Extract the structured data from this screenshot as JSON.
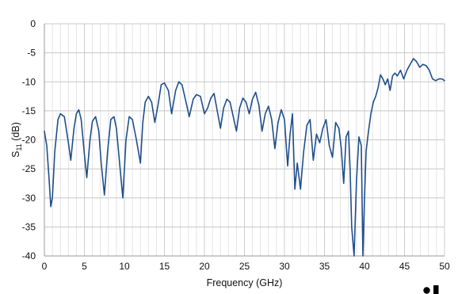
{
  "chart_data": {
    "type": "line",
    "title": "",
    "xlabel": "Frequency (GHz)",
    "ylabel": {
      "base": "S",
      "sub": "11",
      "rest": " (dB)"
    },
    "xlim": [
      0,
      50
    ],
    "ylim": [
      -40,
      0
    ],
    "x_ticks": [
      0,
      5,
      10,
      15,
      20,
      25,
      30,
      35,
      40,
      45,
      50
    ],
    "y_ticks": [
      0,
      -5,
      -10,
      -15,
      -20,
      -25,
      -30,
      -35,
      -40
    ],
    "x_minor_step": 1,
    "grid": true,
    "colors": {
      "series": "#1f4e8c",
      "grid": "#d9d9d9",
      "axis": "#9a9a9a"
    },
    "series": [
      {
        "x": [
          0,
          0.3,
          0.6,
          0.8,
          1.0,
          1.3,
          1.7,
          2.0,
          2.5,
          3.0,
          3.3,
          3.7,
          4.0,
          4.3,
          4.6,
          5.0,
          5.3,
          5.7,
          6.0,
          6.4,
          6.8,
          7.1,
          7.5,
          7.9,
          8.3,
          8.7,
          9.0,
          9.4,
          9.8,
          10.2,
          10.6,
          11.0,
          11.5,
          12.0,
          12.3,
          12.6,
          13.0,
          13.4,
          13.8,
          14.2,
          14.6,
          15.0,
          15.5,
          15.9,
          16.4,
          16.8,
          17.2,
          17.7,
          18.1,
          18.6,
          19.0,
          19.5,
          20.0,
          20.4,
          20.8,
          21.2,
          21.6,
          22.0,
          22.4,
          22.8,
          23.2,
          23.6,
          24.0,
          24.4,
          24.8,
          25.2,
          25.6,
          26.0,
          26.4,
          26.8,
          27.2,
          27.6,
          28.0,
          28.4,
          28.8,
          29.2,
          29.6,
          30.0,
          30.4,
          30.7,
          31.0,
          31.3,
          31.6,
          32.0,
          32.4,
          32.8,
          33.2,
          33.6,
          34.0,
          34.4,
          34.8,
          35.2,
          35.6,
          36.0,
          36.4,
          36.8,
          37.1,
          37.4,
          37.7,
          38.0,
          38.2,
          38.4,
          38.7,
          39.0,
          39.3,
          39.6,
          39.8,
          40.0,
          40.2,
          40.5,
          40.8,
          41.1,
          41.4,
          41.7,
          42.0,
          42.3,
          42.6,
          42.9,
          43.2,
          43.5,
          43.8,
          44.1,
          44.5,
          44.9,
          45.3,
          45.7,
          46.1,
          46.5,
          46.9,
          47.3,
          47.7,
          48.1,
          48.5,
          48.9,
          49.3,
          49.7,
          50.0
        ],
        "y": [
          -18.5,
          -21.0,
          -27.0,
          -31.5,
          -30.0,
          -22.0,
          -16.5,
          -15.5,
          -16.0,
          -20.5,
          -23.5,
          -18.0,
          -15.5,
          -14.8,
          -16.5,
          -22.5,
          -26.5,
          -20.0,
          -16.8,
          -16.0,
          -18.5,
          -24.0,
          -29.5,
          -22.0,
          -16.5,
          -16.0,
          -18.0,
          -24.0,
          -30.0,
          -20.0,
          -16.0,
          -16.5,
          -20.0,
          -24.0,
          -17.0,
          -13.5,
          -12.5,
          -13.5,
          -17.0,
          -14.0,
          -10.5,
          -10.2,
          -11.5,
          -15.5,
          -11.5,
          -10.0,
          -10.5,
          -13.5,
          -16.0,
          -13.0,
          -12.2,
          -12.5,
          -15.5,
          -14.5,
          -12.8,
          -12.0,
          -15.0,
          -18.0,
          -14.5,
          -13.0,
          -13.5,
          -16.0,
          -18.5,
          -14.5,
          -12.8,
          -13.5,
          -15.5,
          -13.0,
          -11.8,
          -14.0,
          -18.5,
          -15.5,
          -14.2,
          -16.5,
          -21.5,
          -17.0,
          -14.8,
          -16.5,
          -24.5,
          -19.0,
          -15.5,
          -28.5,
          -24.0,
          -28.5,
          -22.0,
          -17.5,
          -16.5,
          -23.5,
          -19.0,
          -20.5,
          -18.0,
          -16.5,
          -21.0,
          -23.0,
          -17.0,
          -18.0,
          -21.5,
          -27.5,
          -19.5,
          -18.5,
          -25.0,
          -35.0,
          -40.0,
          -27.0,
          -19.5,
          -21.0,
          -40.0,
          -30.0,
          -22.0,
          -18.5,
          -15.5,
          -13.5,
          -12.5,
          -11.0,
          -8.8,
          -9.5,
          -10.5,
          -9.5,
          -11.5,
          -9.0,
          -8.5,
          -9.0,
          -8.0,
          -9.5,
          -8.0,
          -7.0,
          -6.0,
          -6.5,
          -7.5,
          -7.0,
          -7.2,
          -8.0,
          -9.5,
          -9.8,
          -9.5,
          -9.5,
          -9.8
        ]
      }
    ]
  },
  "corner_marks": {
    "dot_icon": "circle",
    "square_icon": "square"
  }
}
